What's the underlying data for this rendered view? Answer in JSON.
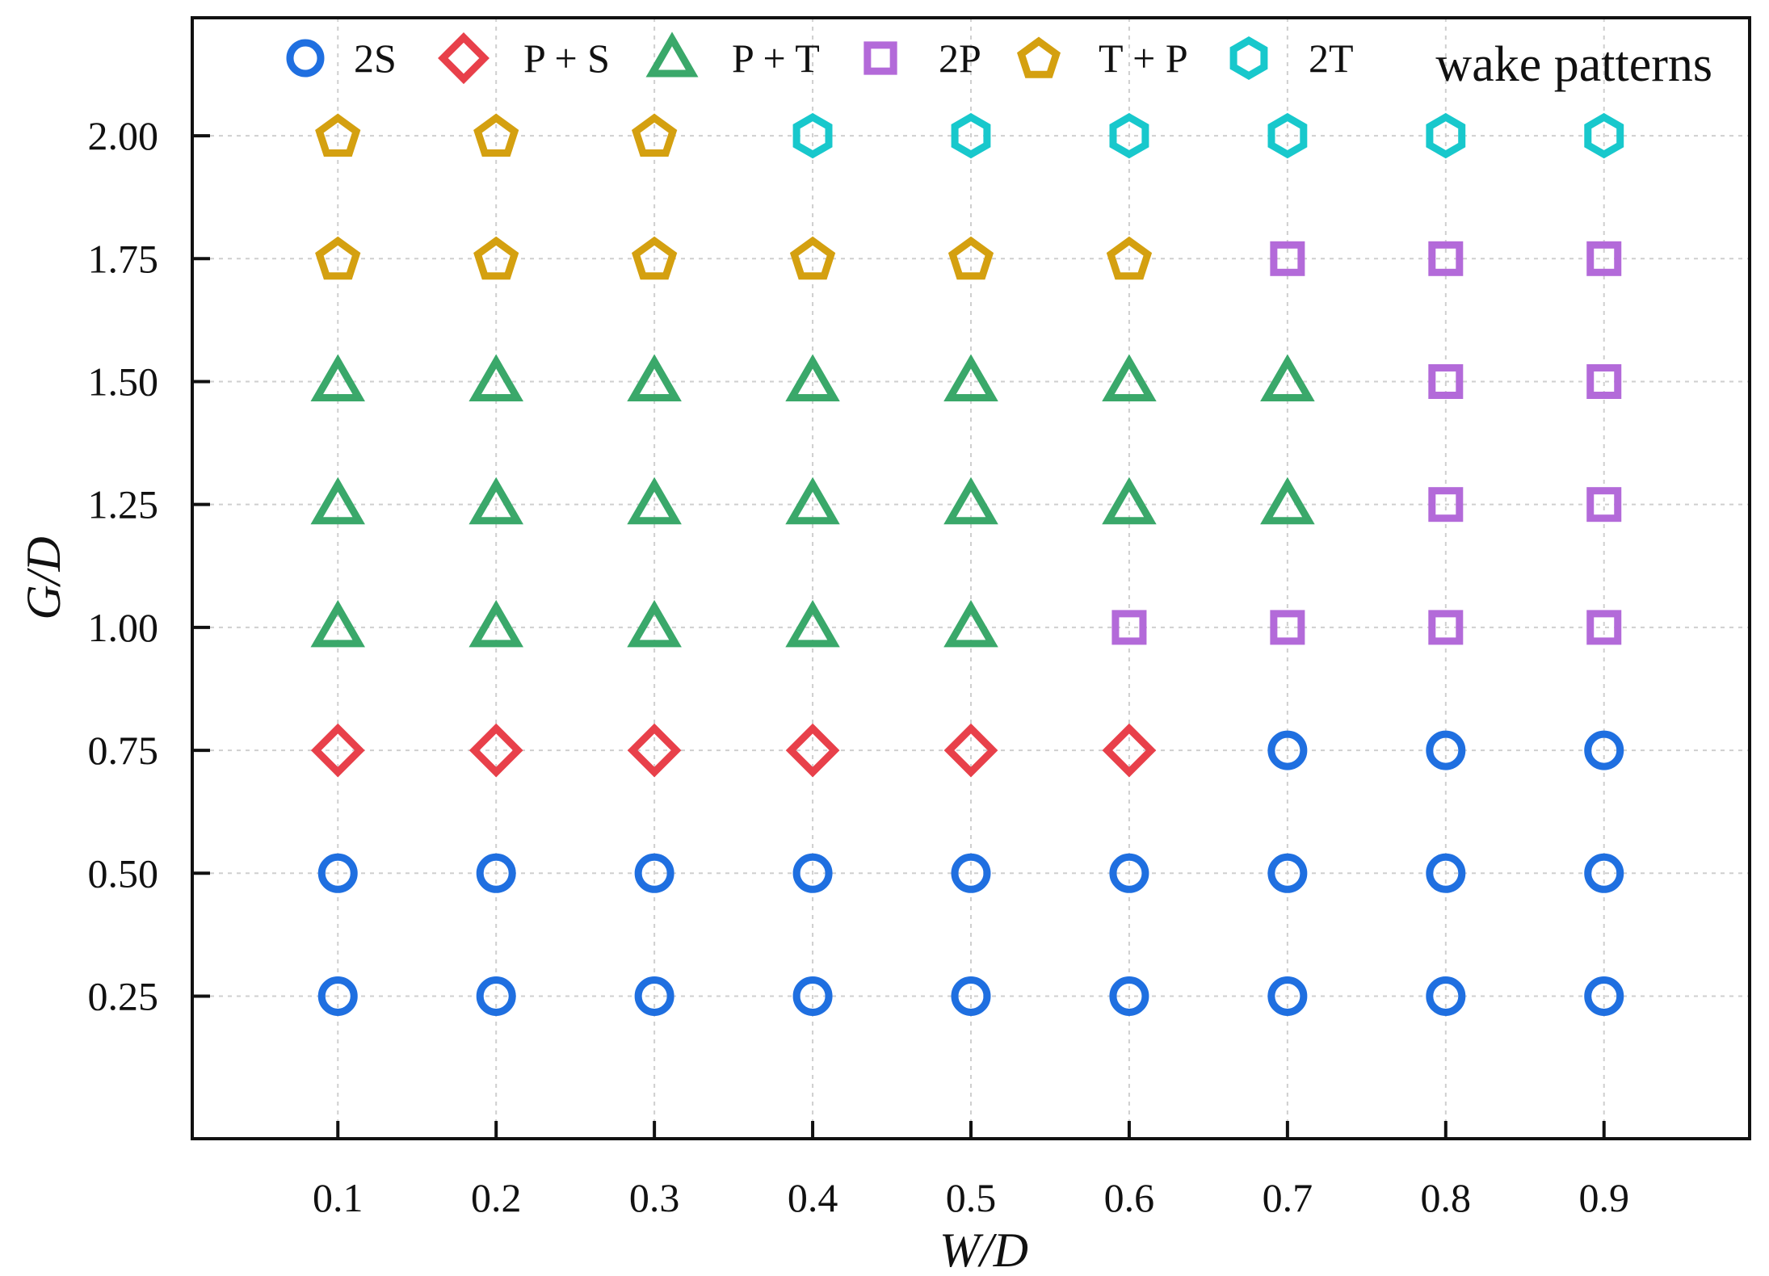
{
  "chart_data": {
    "type": "scatter",
    "xlabel": "W/D",
    "ylabel": "G/D",
    "x_ticks": [
      "0.1",
      "0.2",
      "0.3",
      "0.4",
      "0.5",
      "0.6",
      "0.7",
      "0.8",
      "0.9"
    ],
    "y_ticks": [
      "0.25",
      "0.50",
      "0.75",
      "1.00",
      "1.25",
      "1.50",
      "1.75",
      "2.00"
    ],
    "xlim": [
      0.008,
      0.992
    ],
    "ylim": [
      -0.04,
      2.24
    ],
    "grid": true,
    "legend": {
      "placement": "top",
      "title": "wake patterns"
    },
    "series": [
      {
        "name": "2S",
        "marker": "circle",
        "color": "#1f6fe0",
        "points": [
          [
            0.1,
            0.25
          ],
          [
            0.2,
            0.25
          ],
          [
            0.3,
            0.25
          ],
          [
            0.4,
            0.25
          ],
          [
            0.5,
            0.25
          ],
          [
            0.6,
            0.25
          ],
          [
            0.7,
            0.25
          ],
          [
            0.8,
            0.25
          ],
          [
            0.9,
            0.25
          ],
          [
            0.1,
            0.5
          ],
          [
            0.2,
            0.5
          ],
          [
            0.3,
            0.5
          ],
          [
            0.4,
            0.5
          ],
          [
            0.5,
            0.5
          ],
          [
            0.6,
            0.5
          ],
          [
            0.7,
            0.5
          ],
          [
            0.8,
            0.5
          ],
          [
            0.9,
            0.5
          ],
          [
            0.7,
            0.75
          ],
          [
            0.8,
            0.75
          ],
          [
            0.9,
            0.75
          ]
        ]
      },
      {
        "name": "P + S",
        "marker": "diamond",
        "color": "#e8404a",
        "points": [
          [
            0.1,
            0.75
          ],
          [
            0.2,
            0.75
          ],
          [
            0.3,
            0.75
          ],
          [
            0.4,
            0.75
          ],
          [
            0.5,
            0.75
          ],
          [
            0.6,
            0.75
          ]
        ]
      },
      {
        "name": "P + T",
        "marker": "triangle",
        "color": "#3aa86a",
        "points": [
          [
            0.1,
            1.0
          ],
          [
            0.2,
            1.0
          ],
          [
            0.3,
            1.0
          ],
          [
            0.4,
            1.0
          ],
          [
            0.5,
            1.0
          ],
          [
            0.1,
            1.25
          ],
          [
            0.2,
            1.25
          ],
          [
            0.3,
            1.25
          ],
          [
            0.4,
            1.25
          ],
          [
            0.5,
            1.25
          ],
          [
            0.6,
            1.25
          ],
          [
            0.7,
            1.25
          ],
          [
            0.1,
            1.5
          ],
          [
            0.2,
            1.5
          ],
          [
            0.3,
            1.5
          ],
          [
            0.4,
            1.5
          ],
          [
            0.5,
            1.5
          ],
          [
            0.6,
            1.5
          ],
          [
            0.7,
            1.5
          ]
        ]
      },
      {
        "name": "2P",
        "marker": "square",
        "color": "#b36ad9",
        "points": [
          [
            0.6,
            1.0
          ],
          [
            0.7,
            1.0
          ],
          [
            0.8,
            1.0
          ],
          [
            0.9,
            1.0
          ],
          [
            0.8,
            1.25
          ],
          [
            0.9,
            1.25
          ],
          [
            0.8,
            1.5
          ],
          [
            0.9,
            1.5
          ],
          [
            0.7,
            1.75
          ],
          [
            0.8,
            1.75
          ],
          [
            0.9,
            1.75
          ]
        ]
      },
      {
        "name": "T + P",
        "marker": "pentagon",
        "color": "#d4a010",
        "points": [
          [
            0.1,
            1.75
          ],
          [
            0.2,
            1.75
          ],
          [
            0.3,
            1.75
          ],
          [
            0.4,
            1.75
          ],
          [
            0.5,
            1.75
          ],
          [
            0.6,
            1.75
          ],
          [
            0.1,
            2.0
          ],
          [
            0.2,
            2.0
          ],
          [
            0.3,
            2.0
          ]
        ]
      },
      {
        "name": "2T",
        "marker": "hexagon",
        "color": "#18c8cc",
        "points": [
          [
            0.4,
            2.0
          ],
          [
            0.5,
            2.0
          ],
          [
            0.6,
            2.0
          ],
          [
            0.7,
            2.0
          ],
          [
            0.8,
            2.0
          ],
          [
            0.9,
            2.0
          ]
        ]
      }
    ]
  }
}
